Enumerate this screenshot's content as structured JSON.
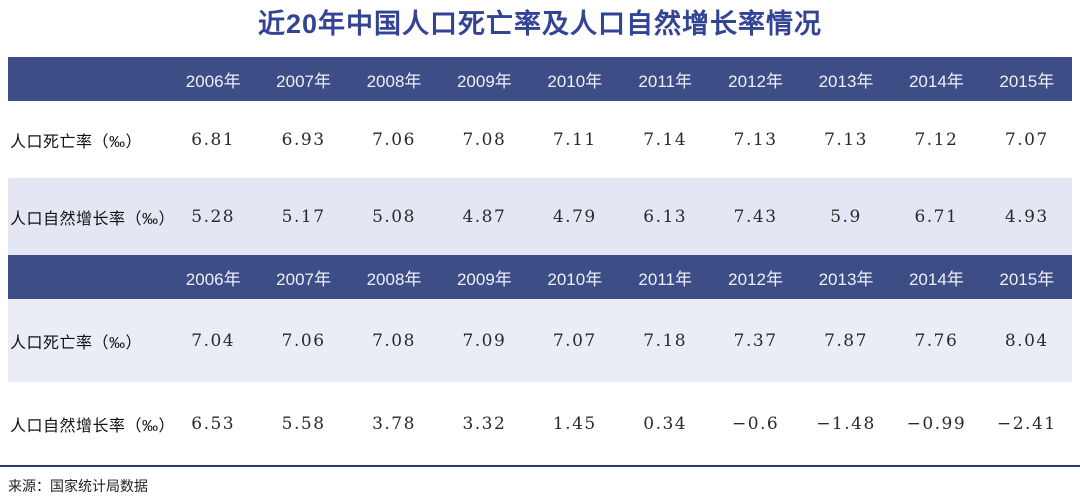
{
  "title": {
    "text": "近20年中国人口死亡率及人口自然增长率情况"
  },
  "colors": {
    "title_text": "#334496",
    "header_bg": "#3d4e87",
    "header_text": "#edeff9",
    "shade_dark": "#e4e7f3",
    "shade_light": "#eaecf6",
    "divider": "#2b3878",
    "body_text": "#222222"
  },
  "tables": [
    {
      "years": [
        "2006年",
        "2007年",
        "2008年",
        "2009年",
        "2010年",
        "2011年",
        "2012年",
        "2013年",
        "2014年",
        "2015年"
      ],
      "rows": [
        {
          "label": "人口死亡率（‰）",
          "values": [
            "6.81",
            "6.93",
            "7.06",
            "7.08",
            "7.11",
            "7.14",
            "7.13",
            "7.13",
            "7.12",
            "7.07"
          ]
        },
        {
          "label": "人口自然增长率（‰）",
          "values": [
            "5.28",
            "5.17",
            "5.08",
            "4.87",
            "4.79",
            "6.13",
            "7.43",
            "5.9",
            "6.71",
            "4.93"
          ]
        }
      ]
    },
    {
      "years": [
        "2006年",
        "2007年",
        "2008年",
        "2009年",
        "2010年",
        "2011年",
        "2012年",
        "2013年",
        "2014年",
        "2015年"
      ],
      "rows": [
        {
          "label": "人口死亡率（‰）",
          "values": [
            "7.04",
            "7.06",
            "7.08",
            "7.09",
            "7.07",
            "7.18",
            "7.37",
            "7.87",
            "7.76",
            "8.04"
          ]
        },
        {
          "label": "人口自然增长率（‰）",
          "values": [
            "6.53",
            "5.58",
            "3.78",
            "3.32",
            "1.45",
            "0.34",
            "−0.6",
            "−1.48",
            "−0.99",
            "−2.41"
          ]
        }
      ]
    }
  ],
  "footer": {
    "source": "来源：国家统计局数据"
  },
  "chart_data": [
    {
      "type": "table",
      "title": "近20年中国人口死亡率及人口自然增长率情况",
      "categories": [
        "2006年",
        "2007年",
        "2008年",
        "2009年",
        "2010年",
        "2011年",
        "2012年",
        "2013年",
        "2014年",
        "2015年"
      ],
      "series": [
        {
          "name": "人口死亡率（‰）",
          "values": [
            6.81,
            6.93,
            7.06,
            7.08,
            7.11,
            7.14,
            7.13,
            7.13,
            7.12,
            7.07
          ]
        },
        {
          "name": "人口自然增长率（‰）",
          "values": [
            5.28,
            5.17,
            5.08,
            4.87,
            4.79,
            6.13,
            7.43,
            5.9,
            6.71,
            4.93
          ]
        }
      ]
    },
    {
      "type": "table",
      "categories": [
        "2006年",
        "2007年",
        "2008年",
        "2009年",
        "2010年",
        "2011年",
        "2012年",
        "2013年",
        "2014年",
        "2015年"
      ],
      "series": [
        {
          "name": "人口死亡率（‰）",
          "values": [
            7.04,
            7.06,
            7.08,
            7.09,
            7.07,
            7.18,
            7.37,
            7.87,
            7.76,
            8.04
          ]
        },
        {
          "name": "人口自然增长率（‰）",
          "values": [
            6.53,
            5.58,
            3.78,
            3.32,
            1.45,
            0.34,
            -0.6,
            -1.48,
            -0.99,
            -2.41
          ]
        }
      ],
      "source_note": "来源：国家统计局数据"
    }
  ]
}
